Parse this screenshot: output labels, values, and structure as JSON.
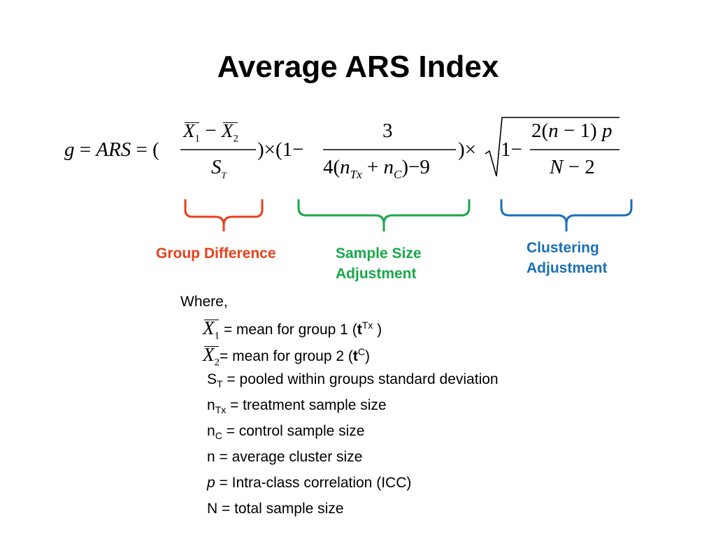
{
  "slide": {
    "title": "Average ARS Index"
  },
  "equation": {
    "lhs": "g = ARS = (",
    "group_diff": {
      "x1": "X",
      "x1_sub": "1",
      "minus": "−",
      "x2": "X",
      "x2_sub": "2",
      "den": "S",
      "den_sub": "T"
    },
    "times1": ")×(1−",
    "sample": {
      "num": "3",
      "den_pre": "4(",
      "n1": "n",
      "n1_sub": "Tx",
      "plus": "+",
      "n2": "n",
      "n2_sub": "C",
      "den_post": ")−9"
    },
    "times2": ")×",
    "cluster": {
      "one_minus": "1−",
      "num": "2(n−1) p",
      "den": "N − 2"
    }
  },
  "braces": {
    "group": {
      "label": "Group Difference",
      "color": "#e8401c"
    },
    "sample": {
      "label_line1": "Sample Size",
      "label_line2": "Adjustment",
      "color": "#18a84a"
    },
    "cluster": {
      "label_line1": "Clustering",
      "label_line2": "Adjustment",
      "color": "#1a6fb8"
    }
  },
  "definitions": {
    "intro": "Where,",
    "x1": {
      "sym": "X",
      "sub": "1",
      "text_pre": " = mean for group 1 (",
      "bold": "t",
      "sup": "Tx",
      "text_post": " )"
    },
    "x2": {
      "sym": "X",
      "sub": "2",
      "text_pre": "= mean for group 2 (",
      "bold": "t",
      "sup": "C",
      "text_post": ")"
    },
    "st": {
      "sym": "S",
      "sub": "T",
      "text": " = pooled within groups standard deviation"
    },
    "ntx": {
      "sym": "n",
      "sub": "Tx",
      "text": " = treatment sample size"
    },
    "nc": {
      "sym": "n",
      "sub": "C",
      "text": " = control sample size"
    },
    "n": {
      "text": "n = average cluster size"
    },
    "p": {
      "sym": "p",
      "text": " = Intra-class correlation (ICC)"
    },
    "bigN": {
      "text": "N = total sample size"
    }
  }
}
